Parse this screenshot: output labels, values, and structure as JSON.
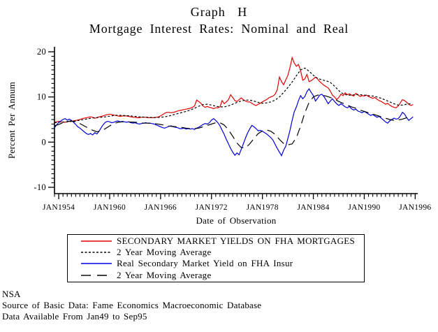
{
  "titles": {
    "line1": "Graph H",
    "line2": "Mortgage Interest Rates: Nominal and Real"
  },
  "footer": {
    "line1": "NSA",
    "line2": "Source of Basic Data: Fame Economics Macroeconomic Database",
    "line3": "Data Available From Jan49 to Sep95"
  },
  "chart_data": {
    "type": "line",
    "title": "Graph H",
    "subtitle": "Mortgage Interest Rates: Nominal and Real",
    "grid": false,
    "legend_position": "bottom-boxed",
    "x_axis": {
      "label": "Date of Observation",
      "lim": [
        1953.5,
        1996.3
      ],
      "major_ticks": [
        1954,
        1960,
        1966,
        1972,
        1978,
        1984,
        1990,
        1996
      ],
      "major_labels": [
        "JAN1954",
        "JAN1960",
        "JAN1966",
        "JAN1972",
        "JAN1978",
        "JAN1984",
        "JAN1990",
        "JAN1996"
      ],
      "minor_step": 0.5
    },
    "y_axis": {
      "label": "Percent Per Annum",
      "lim": [
        -11.4,
        21.1
      ],
      "major_ticks": [
        -10,
        0,
        10,
        20
      ],
      "major_labels": [
        "-10",
        "0",
        "10",
        "20"
      ],
      "minor_step": 1
    },
    "series": [
      {
        "id": "fha-nominal-yield",
        "name": "SECONDARY MARKET YIELDS ON FHA MORTGAGES",
        "color": "#e60000",
        "dash": "solid",
        "x_start": 1953.5,
        "x_step": 0.25,
        "values": [
          4.4,
          4.5,
          4.6,
          4.5,
          4.4,
          4.4,
          4.5,
          4.6,
          4.6,
          4.7,
          4.8,
          4.9,
          5.0,
          5.2,
          5.3,
          5.4,
          5.5,
          5.6,
          5.5,
          5.3,
          5.4,
          5.6,
          5.7,
          5.8,
          6.0,
          6.1,
          6.2,
          6.1,
          6.0,
          5.9,
          5.8,
          5.7,
          5.8,
          5.8,
          5.8,
          5.7,
          5.6,
          5.5,
          5.5,
          5.4,
          5.4,
          5.5,
          5.5,
          5.5,
          5.4,
          5.4,
          5.4,
          5.4,
          5.5,
          5.6,
          5.8,
          6.1,
          6.4,
          6.6,
          6.6,
          6.5,
          6.6,
          6.7,
          6.9,
          7.0,
          7.1,
          7.2,
          7.3,
          7.4,
          7.5,
          7.7,
          8.0,
          9.3,
          9.0,
          8.6,
          8.0,
          7.7,
          7.9,
          7.7,
          7.6,
          7.4,
          7.6,
          7.6,
          7.8,
          9.2,
          8.5,
          8.9,
          9.4,
          10.5,
          9.9,
          9.2,
          9.0,
          9.4,
          9.8,
          9.4,
          9.1,
          8.9,
          8.9,
          8.6,
          8.3,
          8.1,
          8.4,
          8.6,
          8.9,
          9.2,
          9.4,
          9.8,
          10.0,
          10.2,
          10.6,
          11.6,
          14.4,
          13.4,
          12.7,
          13.8,
          14.8,
          16.5,
          18.7,
          17.5,
          16.8,
          17.2,
          15.8,
          13.7,
          14.0,
          15.0,
          13.4,
          13.6,
          14.0,
          14.4,
          14.0,
          13.4,
          13.0,
          12.6,
          12.3,
          12.0,
          11.3,
          10.4,
          10.0,
          9.4,
          9.9,
          10.6,
          10.3,
          10.9,
          10.5,
          10.7,
          10.4,
          10.2,
          10.8,
          10.5,
          10.1,
          10.3,
          10.2,
          10.4,
          10.1,
          9.9,
          9.7,
          9.9,
          9.5,
          9.2,
          9.0,
          8.7,
          8.4,
          8.6,
          8.2,
          7.9,
          7.7,
          7.6,
          8.0,
          8.7,
          9.4,
          9.2,
          8.8,
          8.4,
          8.1,
          8.3
        ]
      },
      {
        "id": "fha-nominal-2yr-ma",
        "name": "2 Year Moving Average",
        "color": "#000000",
        "dash": "short",
        "x_start": 1953.5,
        "x_step": 0.5,
        "values": [
          4.3,
          4.4,
          4.45,
          4.5,
          4.6,
          4.7,
          4.85,
          5.0,
          5.2,
          5.35,
          5.45,
          5.5,
          5.6,
          5.75,
          5.9,
          5.95,
          5.9,
          5.85,
          5.8,
          5.7,
          5.6,
          5.55,
          5.5,
          5.45,
          5.45,
          5.5,
          5.6,
          5.8,
          6.05,
          6.3,
          6.55,
          6.8,
          7.1,
          7.5,
          7.95,
          8.3,
          8.4,
          8.2,
          7.95,
          7.8,
          7.8,
          8.0,
          8.4,
          8.8,
          9.1,
          9.3,
          9.3,
          9.1,
          8.8,
          8.6,
          8.7,
          8.9,
          9.3,
          10.0,
          11.0,
          12.1,
          13.3,
          14.7,
          16.0,
          16.4,
          15.7,
          14.8,
          14.1,
          13.8,
          13.6,
          13.2,
          12.4,
          11.4,
          10.7,
          10.4,
          10.4,
          10.5,
          10.5,
          10.4,
          10.3,
          10.2,
          10.0,
          9.7,
          9.3,
          8.9,
          8.5,
          8.2,
          8.2,
          8.4,
          8.5
        ]
      },
      {
        "id": "fha-real-yield",
        "name": "Real Secondary Market Yield on FHA Insur",
        "color": "#0000dd",
        "dash": "solid",
        "x_start": 1953.5,
        "x_step": 0.25,
        "values": [
          3.2,
          3.8,
          4.4,
          4.7,
          5.0,
          5.2,
          4.9,
          5.1,
          4.8,
          4.4,
          3.9,
          3.4,
          3.1,
          2.7,
          2.3,
          1.9,
          1.7,
          1.9,
          1.6,
          2.1,
          1.8,
          2.4,
          3.2,
          3.9,
          4.4,
          4.6,
          4.5,
          4.3,
          4.4,
          4.6,
          4.7,
          4.5,
          4.6,
          4.5,
          4.4,
          4.5,
          4.3,
          4.2,
          4.3,
          4.1,
          4.0,
          4.1,
          4.2,
          4.3,
          4.2,
          4.2,
          4.1,
          4.0,
          3.8,
          3.6,
          3.4,
          3.2,
          3.1,
          3.3,
          3.5,
          3.6,
          3.4,
          3.3,
          3.2,
          3.0,
          3.0,
          3.1,
          2.9,
          3.0,
          2.9,
          3.0,
          2.8,
          3.1,
          3.3,
          3.6,
          3.9,
          4.1,
          4.0,
          4.3,
          4.9,
          5.2,
          4.8,
          4.3,
          3.6,
          2.6,
          1.7,
          0.6,
          -0.4,
          -1.4,
          -2.2,
          -2.9,
          -2.4,
          -2.8,
          -1.6,
          -0.4,
          0.9,
          2.0,
          2.9,
          3.7,
          3.4,
          3.0,
          2.5,
          2.6,
          2.4,
          2.1,
          1.8,
          1.4,
          1.0,
          0.4,
          -0.5,
          -1.4,
          -2.2,
          -3.0,
          -1.8,
          -0.9,
          0.8,
          2.6,
          4.8,
          6.7,
          7.8,
          9.2,
          10.3,
          9.6,
          10.1,
          11.2,
          11.8,
          11.0,
          10.3,
          9.1,
          9.7,
          10.4,
          10.6,
          10.1,
          9.3,
          8.5,
          9.1,
          9.6,
          9.0,
          8.5,
          8.1,
          8.5,
          8.2,
          7.8,
          7.6,
          7.9,
          7.4,
          7.1,
          7.3,
          6.9,
          6.7,
          6.5,
          6.8,
          6.5,
          6.2,
          5.9,
          6.1,
          5.8,
          5.5,
          5.7,
          5.3,
          4.9,
          4.5,
          4.2,
          4.7,
          5.0,
          5.3,
          5.1,
          5.2,
          5.8,
          6.6,
          6.2,
          5.4,
          4.8,
          5.2,
          5.6
        ]
      },
      {
        "id": "fha-real-2yr-ma",
        "name": "2 Year Moving Average",
        "color": "#000000",
        "dash": "long",
        "x_start": 1953.5,
        "x_step": 0.5,
        "values": [
          3.6,
          3.9,
          4.3,
          4.6,
          4.7,
          4.5,
          4.1,
          3.6,
          3.1,
          2.6,
          2.3,
          2.5,
          3.0,
          3.6,
          4.1,
          4.4,
          4.5,
          4.5,
          4.45,
          4.4,
          4.3,
          4.2,
          4.2,
          4.15,
          4.05,
          3.9,
          3.7,
          3.55,
          3.45,
          3.35,
          3.25,
          3.1,
          3.0,
          3.0,
          3.1,
          3.4,
          3.7,
          4.0,
          4.3,
          4.3,
          3.8,
          2.7,
          1.3,
          -0.2,
          -1.2,
          -1.3,
          -0.4,
          0.8,
          1.9,
          2.5,
          2.7,
          2.4,
          1.7,
          0.6,
          -0.3,
          -0.6,
          -0.4,
          1.0,
          3.5,
          6.5,
          8.8,
          10.0,
          10.4,
          10.4,
          10.2,
          9.9,
          9.5,
          9.0,
          8.6,
          8.2,
          7.8,
          7.5,
          7.1,
          6.8,
          6.5,
          6.2,
          5.9,
          5.6,
          5.3,
          5.0,
          4.8,
          4.9,
          5.1,
          5.4,
          5.7
        ]
      }
    ]
  }
}
